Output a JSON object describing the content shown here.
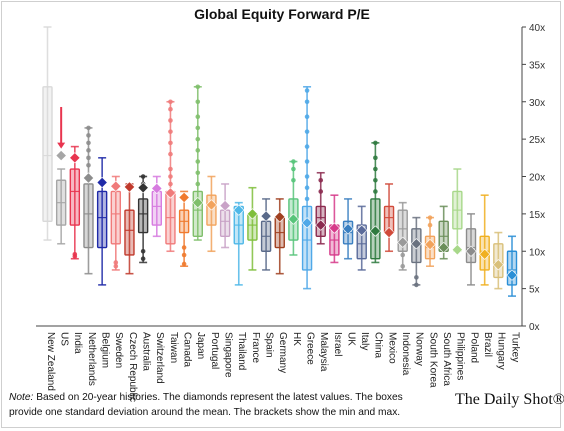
{
  "title": "Global Equity Forward P/E",
  "note": {
    "label": "Note:",
    "text": " Based on 20-year histories. The diamonds represent the latest values. The boxes provide one standard deviation around the mean. The brackets show the min and max."
  },
  "brand": "The Daily Shot®",
  "chart_data": {
    "type": "box",
    "title": "Global Equity Forward P/E",
    "ylim": [
      0,
      40
    ],
    "yticks": [
      0,
      5,
      10,
      15,
      20,
      25,
      30,
      35,
      40
    ],
    "ytick_labels": [
      "0x",
      "5x",
      "10x",
      "15x",
      "20x",
      "25x",
      "30x",
      "35x",
      "40x"
    ],
    "y_axis_side": "right",
    "grid": false,
    "annotation": {
      "type": "arrow",
      "target": "US",
      "color": "#e8354f"
    },
    "series": [
      {
        "name": "New Zealand",
        "color": "#d9d9d9",
        "min": 11.5,
        "max": 40,
        "box_low": 14,
        "box_high": 32,
        "mean": 22.8,
        "latest": null,
        "outliers": []
      },
      {
        "name": "US",
        "color": "#a6a6a6",
        "min": 11,
        "max": 21,
        "box_low": 13.5,
        "box_high": 19.5,
        "mean": 16.5,
        "latest": 22.8,
        "outliers": []
      },
      {
        "name": "India",
        "color": "#e8354f",
        "min": 9,
        "max": 24,
        "box_low": 13.5,
        "box_high": 21,
        "mean": 18,
        "latest": 22.5,
        "outliers": [
          9.3,
          9.6
        ]
      },
      {
        "name": "Netherlands",
        "color": "#8c8c8c",
        "min": 7,
        "max": 26.5,
        "box_low": 10.5,
        "box_high": 19,
        "mean": 15,
        "latest": 19.8,
        "outliers": [
          21.5,
          22.5,
          23.5,
          24.5,
          25.5,
          26.5
        ]
      },
      {
        "name": "Belgium",
        "color": "#1f2aa8",
        "min": 5.5,
        "max": 22.5,
        "box_low": 10.5,
        "box_high": 18,
        "mean": 14.5,
        "latest": 19.2,
        "outliers": []
      },
      {
        "name": "Sweden",
        "color": "#f07a7a",
        "min": 7.5,
        "max": 20,
        "box_low": 11,
        "box_high": 18,
        "mean": 15,
        "latest": 18.7,
        "outliers": [
          8,
          8.5
        ]
      },
      {
        "name": "Czech Republic",
        "color": "#c0392b",
        "min": 7,
        "max": 19,
        "box_low": 9.5,
        "box_high": 15.5,
        "mean": 12.8,
        "latest": 18.6,
        "outliers": []
      },
      {
        "name": "Australia",
        "color": "#333333",
        "min": 8.5,
        "max": 20,
        "box_low": 12.5,
        "box_high": 17,
        "mean": 15,
        "latest": 18.5,
        "outliers": [
          9,
          10,
          19,
          20
        ]
      },
      {
        "name": "Switzerland",
        "color": "#d77be0",
        "min": 12,
        "max": 20,
        "box_low": 13.5,
        "box_high": 18,
        "mean": 16,
        "latest": 18.4,
        "outliers": []
      },
      {
        "name": "Taiwan",
        "color": "#f07a7a",
        "min": 10,
        "max": 30,
        "box_low": 11,
        "box_high": 18,
        "mean": 14.5,
        "latest": 17.8,
        "outliers": [
          19,
          20,
          21,
          23,
          24.5,
          26,
          27.5,
          29,
          30
        ]
      },
      {
        "name": "Canada",
        "color": "#f07a2e",
        "min": 8,
        "max": 18,
        "box_low": 12.5,
        "box_high": 15.5,
        "mean": 14,
        "latest": 17.2,
        "outliers": [
          8.3,
          9.5,
          10.5
        ]
      },
      {
        "name": "Japan",
        "color": "#7fbf6b",
        "min": 11.5,
        "max": 32,
        "box_low": 12,
        "box_high": 18,
        "mean": 15.5,
        "latest": 16.5,
        "outliers": [
          19,
          20.5,
          22,
          23.5,
          25,
          26.5,
          28,
          30,
          32
        ]
      },
      {
        "name": "Portugal",
        "color": "#f2a35c",
        "min": 10,
        "max": 20,
        "box_low": 13.5,
        "box_high": 17.5,
        "mean": 16,
        "latest": 16.2,
        "outliers": []
      },
      {
        "name": "Singapore",
        "color": "#c9a3c7",
        "min": 10.5,
        "max": 19,
        "box_low": 12,
        "box_high": 15.5,
        "mean": 14,
        "latest": 16.1,
        "outliers": []
      },
      {
        "name": "Thailand",
        "color": "#4fb8e8",
        "min": 5.5,
        "max": 16.5,
        "box_low": 11,
        "box_high": 16,
        "mean": 13.5,
        "latest": 15.5,
        "outliers": []
      },
      {
        "name": "France",
        "color": "#7fbf3b",
        "min": 7.5,
        "max": 18.5,
        "box_low": 11.5,
        "box_high": 15,
        "mean": 13.5,
        "latest": 15,
        "outliers": []
      },
      {
        "name": "Spain",
        "color": "#5a6a8a",
        "min": 7.5,
        "max": 17,
        "box_low": 10,
        "box_high": 14,
        "mean": 12,
        "latest": 14.7,
        "outliers": []
      },
      {
        "name": "Germany",
        "color": "#a04020",
        "min": 7,
        "max": 17,
        "box_low": 10.5,
        "box_high": 14.5,
        "mean": 12.5,
        "latest": 14.6,
        "outliers": []
      },
      {
        "name": "HK",
        "color": "#57c47a",
        "min": 9.5,
        "max": 22,
        "box_low": 11.5,
        "box_high": 17,
        "mean": 14.5,
        "latest": 14.3,
        "outliers": [
          19.5,
          21,
          22
        ]
      },
      {
        "name": "Greece",
        "color": "#4fa8e8",
        "min": 5,
        "max": 32,
        "box_low": 7.5,
        "box_high": 16,
        "mean": 11.5,
        "latest": 13.8,
        "outliers": [
          17,
          18.5,
          20,
          22,
          24,
          26,
          28,
          30,
          31.5
        ]
      },
      {
        "name": "Malaysia",
        "color": "#8b2a4f",
        "min": 11,
        "max": 20.5,
        "box_low": 12,
        "box_high": 16,
        "mean": 14.5,
        "latest": 13.5,
        "outliers": [
          18,
          19.5
        ]
      },
      {
        "name": "Israel",
        "color": "#d63a8a",
        "min": 8.5,
        "max": 17.5,
        "box_low": 9.5,
        "box_high": 13.5,
        "mean": 11.5,
        "latest": 13.1,
        "outliers": []
      },
      {
        "name": "UK",
        "color": "#3a7fc1",
        "min": 9,
        "max": 17,
        "box_low": 11,
        "box_high": 14,
        "mean": 12.5,
        "latest": 13,
        "outliers": []
      },
      {
        "name": "Italy",
        "color": "#5a6a9a",
        "min": 7.5,
        "max": 16,
        "box_low": 9,
        "box_high": 13.5,
        "mean": 11,
        "latest": 12.8,
        "outliers": []
      },
      {
        "name": "China",
        "color": "#2f7a3f",
        "min": 8.5,
        "max": 24.5,
        "box_low": 9,
        "box_high": 17,
        "mean": 12.5,
        "latest": 12.7,
        "outliers": [
          18,
          19.5,
          21,
          22.5,
          24.5
        ]
      },
      {
        "name": "Mexico",
        "color": "#d14a3a",
        "min": 10,
        "max": 19,
        "box_low": 12.5,
        "box_high": 16,
        "mean": 14.5,
        "latest": 12.5,
        "outliers": []
      },
      {
        "name": "Indonesia",
        "color": "#9a9a9a",
        "min": 7.5,
        "max": 16.5,
        "box_low": 10,
        "box_high": 15.5,
        "mean": 13,
        "latest": 11.2,
        "outliers": [
          8,
          9.5
        ]
      },
      {
        "name": "Norway",
        "color": "#6a7280",
        "min": 5.5,
        "max": 14.5,
        "box_low": 8.5,
        "box_high": 13,
        "mean": 11,
        "latest": 11,
        "outliers": [
          5.5,
          6.5
        ]
      },
      {
        "name": "South Korea",
        "color": "#f2a35c",
        "min": 8,
        "max": 14.5,
        "box_low": 9,
        "box_high": 12,
        "mean": 10.5,
        "latest": 10.9,
        "outliers": [
          13.5,
          14.5
        ]
      },
      {
        "name": "South Africa",
        "color": "#6b8f5a",
        "min": 9,
        "max": 16,
        "box_low": 10,
        "box_high": 14,
        "mean": 12,
        "latest": 10.5,
        "outliers": []
      },
      {
        "name": "Philippines",
        "color": "#a8d88a",
        "min": 10,
        "max": 21,
        "box_low": 13,
        "box_high": 18,
        "mean": 15.5,
        "latest": 10.2,
        "outliers": []
      },
      {
        "name": "Poland",
        "color": "#8c8c8c",
        "min": 5.5,
        "max": 15,
        "box_low": 8.5,
        "box_high": 13,
        "mean": 10.5,
        "latest": 10,
        "outliers": []
      },
      {
        "name": "Brazil",
        "color": "#f0b020",
        "min": 5.5,
        "max": 17.5,
        "box_low": 7.5,
        "box_high": 12,
        "mean": 10,
        "latest": 9.6,
        "outliers": []
      },
      {
        "name": "Hungary",
        "color": "#d9c07a",
        "min": 5,
        "max": 12.5,
        "box_low": 6.5,
        "box_high": 11,
        "mean": 8.5,
        "latest": 8.2,
        "outliers": []
      },
      {
        "name": "Turkey",
        "color": "#2a8fd6",
        "min": 4,
        "max": 12,
        "box_low": 5.5,
        "box_high": 10,
        "mean": 7.5,
        "latest": 6.8,
        "outliers": []
      }
    ]
  }
}
